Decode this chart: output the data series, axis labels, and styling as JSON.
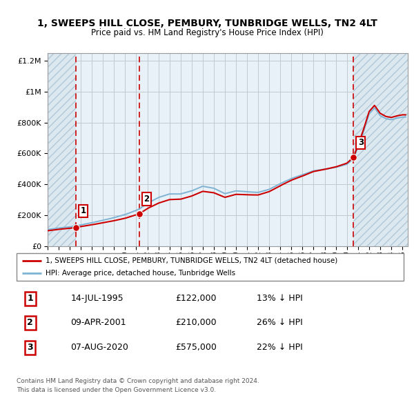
{
  "title": "1, SWEEPS HILL CLOSE, PEMBURY, TUNBRIDGE WELLS, TN2 4LT",
  "subtitle": "Price paid vs. HM Land Registry's House Price Index (HPI)",
  "legend_line1": "1, SWEEPS HILL CLOSE, PEMBURY, TUNBRIDGE WELLS, TN2 4LT (detached house)",
  "legend_line2": "HPI: Average price, detached house, Tunbridge Wells",
  "footer1": "Contains HM Land Registry data © Crown copyright and database right 2024.",
  "footer2": "This data is licensed under the Open Government Licence v3.0.",
  "sale_points": [
    {
      "num": 1,
      "date": "14-JUL-1995",
      "price": 122000,
      "year": 1995.54
    },
    {
      "num": 2,
      "date": "09-APR-2001",
      "price": 210000,
      "year": 2001.27
    },
    {
      "num": 3,
      "date": "07-AUG-2020",
      "price": 575000,
      "year": 2020.6
    }
  ],
  "table_rows": [
    {
      "num": 1,
      "date": "14-JUL-1995",
      "price": "£122,000",
      "change": "13% ↓ HPI"
    },
    {
      "num": 2,
      "date": "09-APR-2001",
      "price": "£210,000",
      "change": "26% ↓ HPI"
    },
    {
      "num": 3,
      "date": "07-AUG-2020",
      "price": "£575,000",
      "change": "22% ↓ HPI"
    }
  ],
  "xlim": [
    1993.0,
    2025.5
  ],
  "ylim": [
    0,
    1250000
  ],
  "hatch_left_end": 1995.54,
  "hatch_right_start": 2020.6,
  "red_color": "#cc0000",
  "blue_color": "#7fb3d3",
  "hatch_facecolor": "#dce8f0",
  "hatch_edgecolor": "#b0c8d8",
  "bg_color": "#e8f0f8",
  "grid_color": "#c0c8d0"
}
